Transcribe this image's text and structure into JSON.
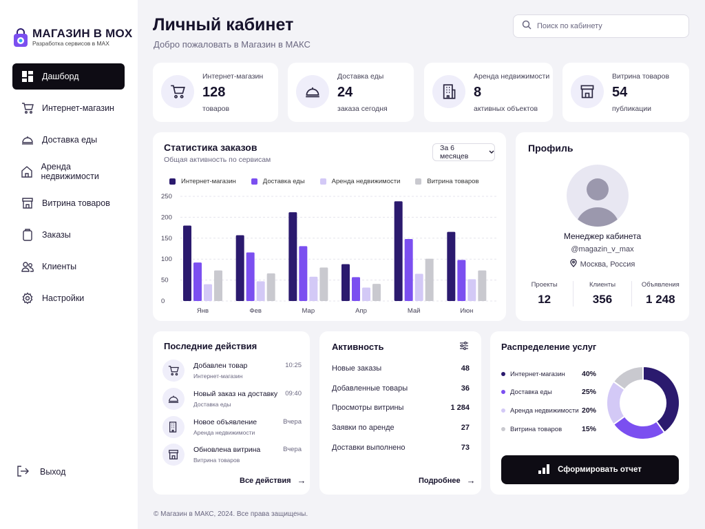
{
  "brand": {
    "title": "МАГАЗИН В MOX",
    "subtitle": "Разработка сервисов в MAX"
  },
  "sidebar": {
    "items": [
      {
        "label": "Дашборд",
        "icon": "dashboard-icon",
        "active": true
      },
      {
        "label": "Интернет-магазин",
        "icon": "cart-icon"
      },
      {
        "label": "Доставка еды",
        "icon": "cloche-icon"
      },
      {
        "label": "Аренда недвижимости",
        "icon": "house-icon"
      },
      {
        "label": "Витрина товаров",
        "icon": "storefront-icon"
      },
      {
        "label": "Заказы",
        "icon": "clipboard-icon"
      },
      {
        "label": "Клиенты",
        "icon": "users-icon"
      },
      {
        "label": "Настройки",
        "icon": "gear-icon"
      }
    ],
    "logout": "Выход"
  },
  "header": {
    "title": "Личный кабинет",
    "subtitle": "Добро пожаловать в Магазин в МАКС",
    "search_placeholder": "Поиск по кабинету"
  },
  "stats": [
    {
      "label": "Интернет-магазин",
      "value": "128",
      "desc": "товаров",
      "icon": "cart-icon"
    },
    {
      "label": "Доставка еды",
      "value": "24",
      "desc": "заказа сегодня",
      "icon": "cloche-icon"
    },
    {
      "label": "Аренда недвижимости",
      "value": "8",
      "desc": "активных объектов",
      "icon": "building-icon"
    },
    {
      "label": "Витрина товаров",
      "value": "54",
      "desc": "публикации",
      "icon": "storefront-icon"
    }
  ],
  "orders_chart": {
    "title": "Статистика заказов",
    "subtitle": "Общая активность по сервисам",
    "period": "За 6 месяцев"
  },
  "chart_data": {
    "type": "bar",
    "categories": [
      "Янв",
      "Фев",
      "Мар",
      "Апр",
      "Май",
      "Июн"
    ],
    "series": [
      {
        "name": "Интернет-магазин",
        "color": "#2b1a6e",
        "values": [
          180,
          157,
          212,
          88,
          238,
          165
        ]
      },
      {
        "name": "Доставка еды",
        "color": "#7b4ff0",
        "values": [
          92,
          116,
          131,
          57,
          148,
          98
        ]
      },
      {
        "name": "Аренда недвижимости",
        "color": "#d3c9f6",
        "values": [
          40,
          47,
          58,
          32,
          65,
          52
        ]
      },
      {
        "name": "Витрина товаров",
        "color": "#c9c9cf",
        "values": [
          73,
          66,
          80,
          41,
          101,
          73
        ]
      }
    ],
    "yticks": [
      0,
      50,
      100,
      150,
      200,
      250
    ],
    "ylim": [
      0,
      250
    ],
    "grid": true,
    "legend": "top"
  },
  "profile": {
    "title": "Профиль",
    "name": "Менеджер кабинета",
    "handle": "@magazin_v_max",
    "location": "Москва, Россия",
    "stats": [
      {
        "label": "Проекты",
        "value": "12"
      },
      {
        "label": "Клиенты",
        "value": "356"
      },
      {
        "label": "Объявления",
        "value": "1 248"
      }
    ]
  },
  "recent": {
    "title": "Последние действия",
    "items": [
      {
        "title": "Добавлен товар",
        "sub": "Интернет-магазин",
        "time": "10:25",
        "icon": "cart-icon"
      },
      {
        "title": "Новый заказ на доставку",
        "sub": "Доставка еды",
        "time": "09:40",
        "icon": "cloche-icon"
      },
      {
        "title": "Новое объявление",
        "sub": "Аренда недвижимости",
        "time": "Вчера",
        "icon": "building-icon"
      },
      {
        "title": "Обновлена витрина",
        "sub": "Витрина товаров",
        "time": "Вчера",
        "icon": "storefront-icon"
      }
    ],
    "link": "Все действия"
  },
  "activity": {
    "title": "Активность",
    "rows": [
      {
        "label": "Новые заказы",
        "value": "48"
      },
      {
        "label": "Добавленные товары",
        "value": "36"
      },
      {
        "label": "Просмотры витрины",
        "value": "1 284"
      },
      {
        "label": "Заявки по аренде",
        "value": "27"
      },
      {
        "label": "Доставки выполнено",
        "value": "73"
      }
    ],
    "link": "Подробнее"
  },
  "distribution": {
    "title": "Распределение услуг",
    "items": [
      {
        "label": "Интернет-магазин",
        "pct": "40%",
        "value": 40,
        "color": "#2b1a6e"
      },
      {
        "label": "Доставка еды",
        "pct": "25%",
        "value": 25,
        "color": "#7b4ff0"
      },
      {
        "label": "Аренда недвижимости",
        "pct": "20%",
        "value": 20,
        "color": "#d3c9f6"
      },
      {
        "label": "Витрина товаров",
        "pct": "15%",
        "value": 15,
        "color": "#c9c9cf"
      }
    ],
    "button": "Сформировать отчет"
  },
  "footer": "© Магазин в МАКС, 2024. Все права защищены."
}
